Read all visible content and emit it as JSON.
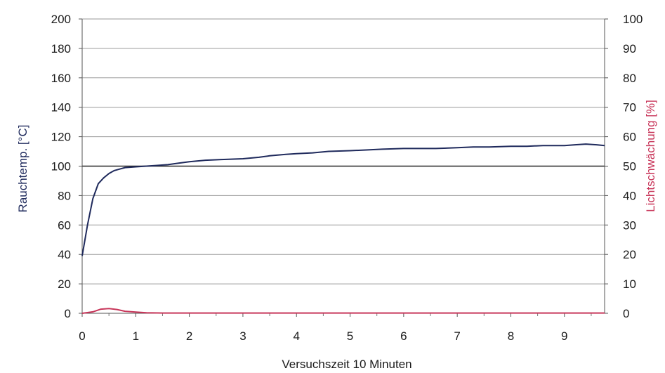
{
  "chart_data": {
    "type": "line",
    "xlabel": "Versuchszeit 10 Minuten",
    "ylabel": "Rauchtemp. [°C]",
    "y2label": "Lichtschwächung [%]",
    "x_ticks": [
      "0",
      "1",
      "2",
      "3",
      "4",
      "5",
      "6",
      "7",
      "8",
      "9"
    ],
    "y_ticks": [
      "0",
      "20",
      "40",
      "60",
      "80",
      "100",
      "120",
      "140",
      "160",
      "180",
      "200"
    ],
    "y2_ticks": [
      "0",
      "10",
      "20",
      "30",
      "40",
      "50",
      "60",
      "70",
      "80",
      "90",
      "100"
    ],
    "xlim": [
      0,
      9.75
    ],
    "ylim": [
      0,
      200
    ],
    "y2lim": [
      0,
      100
    ],
    "grid": true,
    "highlight_line_y": 100,
    "series": [
      {
        "axis": "left",
        "color": "#1f2a5c",
        "x": [
          0,
          0.1,
          0.2,
          0.3,
          0.4,
          0.5,
          0.6,
          0.7,
          0.8,
          1.0,
          1.2,
          1.4,
          1.6,
          1.8,
          2.0,
          2.3,
          2.6,
          3.0,
          3.3,
          3.5,
          3.8,
          4.0,
          4.3,
          4.6,
          5.0,
          5.3,
          5.6,
          6.0,
          6.3,
          6.6,
          7.0,
          7.3,
          7.6,
          8.0,
          8.3,
          8.6,
          9.0,
          9.2,
          9.4,
          9.6,
          9.75
        ],
        "values": [
          39,
          60,
          78,
          88,
          92,
          95,
          97,
          98,
          99,
          99.5,
          100,
          100.5,
          101,
          102,
          103,
          104,
          104.5,
          105,
          106,
          107,
          108,
          108.5,
          109,
          110,
          110.5,
          111,
          111.5,
          112,
          112,
          112,
          112.5,
          113,
          113,
          113.5,
          113.5,
          114,
          114,
          114.5,
          115,
          114.5,
          114
        ]
      },
      {
        "axis": "right",
        "color": "#c8365a",
        "x": [
          0,
          0.2,
          0.35,
          0.5,
          0.65,
          0.8,
          1.0,
          1.2,
          1.5,
          2.0,
          3.0,
          4.0,
          5.0,
          6.0,
          7.0,
          8.0,
          9.0,
          9.75
        ],
        "values": [
          0,
          0.5,
          1.4,
          1.6,
          1.3,
          0.7,
          0.4,
          0.2,
          0.1,
          0.1,
          0.1,
          0.1,
          0.1,
          0.1,
          0.1,
          0.1,
          0.1,
          0.1
        ]
      }
    ]
  }
}
